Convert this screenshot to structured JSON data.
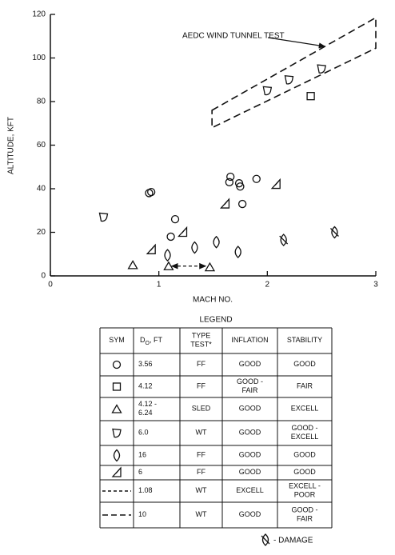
{
  "chart_data": {
    "type": "scatter",
    "xlabel": "MACH NO.",
    "ylabel": "ALTITUDE, KFT",
    "annotation": "AEDC WIND TUNNEL TEST",
    "xlim": [
      0,
      3
    ],
    "ylim": [
      0,
      120
    ],
    "xticks": [
      0,
      1,
      2,
      3
    ],
    "yticks": [
      0,
      20,
      40,
      60,
      80,
      100,
      120
    ],
    "series": [
      {
        "symbol": "circle",
        "x": [
          0.91,
          0.93,
          1.15,
          1.11,
          1.66,
          1.65,
          1.74,
          1.75,
          1.9,
          1.77
        ],
        "y": [
          38,
          38.5,
          26,
          18,
          45.5,
          43,
          42.5,
          41,
          44.5,
          33
        ]
      },
      {
        "symbol": "square",
        "x": [
          2.4
        ],
        "y": [
          82.5
        ]
      },
      {
        "symbol": "triangle",
        "x": [
          0.76,
          1.09,
          1.47
        ],
        "y": [
          5,
          4.5,
          4
        ]
      },
      {
        "symbol": "shield",
        "x": [
          0.49,
          2.0,
          2.2,
          2.5
        ],
        "y": [
          27,
          85,
          90,
          95
        ]
      },
      {
        "symbol": "lens",
        "x": [
          1.08,
          1.33,
          1.53,
          1.73
        ],
        "y": [
          9.5,
          13,
          15.5,
          11
        ]
      },
      {
        "symbol": "flag",
        "x": [
          0.93,
          1.22,
          1.61,
          2.08
        ],
        "y": [
          12,
          20,
          33,
          42
        ]
      },
      {
        "symbol": "dash-short",
        "x": [
          1.12,
          1.43
        ],
        "y": [
          4.5,
          4.5
        ]
      },
      {
        "symbol": "dash-long",
        "x": [
          1.49,
          3.0,
          3.0,
          1.49
        ],
        "y": [
          76,
          118.5,
          104.5,
          68
        ]
      },
      {
        "symbol": "damage",
        "x": [
          2.15,
          2.62
        ],
        "y": [
          16.5,
          20
        ]
      }
    ]
  },
  "legend": {
    "title": "LEGEND",
    "header": [
      "SYM",
      {
        "main": "D",
        "sub": "O",
        "rest": ", FT"
      },
      "TYPE TEST*",
      "INFLATION",
      "STABILITY"
    ],
    "rows": [
      {
        "symbol": "circle",
        "cells": [
          "3.56",
          "FF",
          "GOOD",
          "GOOD"
        ]
      },
      {
        "symbol": "square",
        "cells": [
          "4.12",
          "FF",
          "GOOD - FAIR",
          "FAIR"
        ]
      },
      {
        "symbol": "triangle",
        "cells": [
          "4.12 - 6.24",
          "SLED",
          "GOOD",
          "EXCELL"
        ]
      },
      {
        "symbol": "shield",
        "cells": [
          "6.0",
          "WT",
          "GOOD",
          "GOOD - EXCELL"
        ]
      },
      {
        "symbol": "lens",
        "cells": [
          "16",
          "FF",
          "GOOD",
          "GOOD"
        ]
      },
      {
        "symbol": "flag",
        "cells": [
          "6",
          "FF",
          "GOOD",
          "GOOD"
        ]
      },
      {
        "symbol": "dash-short",
        "cells": [
          "1.08",
          "WT",
          "EXCELL",
          "EXCELL - POOR"
        ]
      },
      {
        "symbol": "dash-long",
        "cells": [
          "10",
          "WT",
          "GOOD",
          "GOOD - FAIR"
        ]
      }
    ],
    "footnote": "- DAMAGE"
  }
}
